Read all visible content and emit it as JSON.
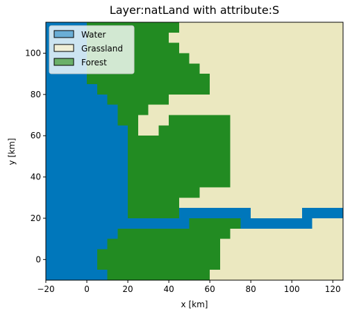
{
  "chart_data": {
    "type": "heatmap",
    "title": "Layer:natLand with attribute:S",
    "xlabel": "x [km]",
    "ylabel": "y [km]",
    "xlim": [
      -20,
      125
    ],
    "ylim": [
      -10,
      115
    ],
    "xticks": [
      -20,
      0,
      20,
      40,
      60,
      80,
      100,
      120
    ],
    "yticks": [
      0,
      20,
      40,
      60,
      80,
      100
    ],
    "grid": false,
    "legend_position": "top-left",
    "colors": {
      "water": "#0077bb",
      "grassland": "#ebe8c0",
      "forest": "#228b22"
    },
    "legend": [
      {
        "label": "Water",
        "swatch": "#6aaed6"
      },
      {
        "label": "Grassland",
        "swatch": "#f0efd7"
      },
      {
        "label": "Forest",
        "swatch": "#6ab06a"
      }
    ],
    "rows": [
      {
        "y": [
          110,
          115
        ],
        "segments": [
          [
            "water",
            -20,
            0
          ],
          [
            "forest",
            0,
            45
          ],
          [
            "grassland",
            45,
            125
          ]
        ]
      },
      {
        "y": [
          105,
          110
        ],
        "segments": [
          [
            "water",
            -20,
            0
          ],
          [
            "forest",
            0,
            40
          ],
          [
            "grassland",
            40,
            125
          ]
        ]
      },
      {
        "y": [
          100,
          105
        ],
        "segments": [
          [
            "water",
            -20,
            0
          ],
          [
            "forest",
            0,
            45
          ],
          [
            "grassland",
            45,
            125
          ]
        ]
      },
      {
        "y": [
          95,
          100
        ],
        "segments": [
          [
            "water",
            -20,
            0
          ],
          [
            "forest",
            0,
            50
          ],
          [
            "grassland",
            50,
            125
          ]
        ]
      },
      {
        "y": [
          90,
          95
        ],
        "segments": [
          [
            "water",
            -20,
            0
          ],
          [
            "forest",
            0,
            55
          ],
          [
            "grassland",
            55,
            125
          ]
        ]
      },
      {
        "y": [
          85,
          90
        ],
        "segments": [
          [
            "water",
            -20,
            0
          ],
          [
            "forest",
            0,
            60
          ],
          [
            "grassland",
            60,
            125
          ]
        ]
      },
      {
        "y": [
          80,
          85
        ],
        "segments": [
          [
            "water",
            -20,
            5
          ],
          [
            "forest",
            5,
            60
          ],
          [
            "grassland",
            60,
            125
          ]
        ]
      },
      {
        "y": [
          75,
          80
        ],
        "segments": [
          [
            "water",
            -20,
            10
          ],
          [
            "forest",
            10,
            40
          ],
          [
            "grassland",
            40,
            125
          ]
        ]
      },
      {
        "y": [
          70,
          75
        ],
        "segments": [
          [
            "water",
            -20,
            15
          ],
          [
            "forest",
            15,
            30
          ],
          [
            "grassland",
            30,
            125
          ]
        ]
      },
      {
        "y": [
          65,
          70
        ],
        "segments": [
          [
            "water",
            -20,
            15
          ],
          [
            "forest",
            15,
            25
          ],
          [
            "grassland",
            25,
            40
          ],
          [
            "forest",
            40,
            70
          ],
          [
            "grassland",
            70,
            125
          ]
        ]
      },
      {
        "y": [
          60,
          65
        ],
        "segments": [
          [
            "water",
            -20,
            20
          ],
          [
            "forest",
            20,
            25
          ],
          [
            "grassland",
            25,
            35
          ],
          [
            "forest",
            35,
            70
          ],
          [
            "grassland",
            70,
            125
          ]
        ]
      },
      {
        "y": [
          25,
          60
        ],
        "segments": [
          [
            "water",
            -20,
            20
          ],
          [
            "forest",
            20,
            70
          ],
          [
            "grassland",
            70,
            125
          ]
        ]
      },
      {
        "y": [
          30,
          35
        ],
        "segments": [
          [
            "water",
            -20,
            20
          ],
          [
            "forest",
            20,
            55
          ],
          [
            "grassland",
            55,
            125
          ]
        ]
      },
      {
        "y": [
          25,
          30
        ],
        "segments": [
          [
            "water",
            -20,
            20
          ],
          [
            "forest",
            20,
            45
          ],
          [
            "grassland",
            45,
            125
          ]
        ]
      },
      {
        "y": [
          20,
          25
        ],
        "segments": [
          [
            "water",
            -20,
            20
          ],
          [
            "forest",
            20,
            45
          ],
          [
            "water",
            45,
            80
          ],
          [
            "grassland",
            80,
            105
          ],
          [
            "water",
            105,
            125
          ]
        ]
      },
      {
        "y": [
          15,
          20
        ],
        "segments": [
          [
            "water",
            -20,
            50
          ],
          [
            "forest",
            50,
            75
          ],
          [
            "water",
            75,
            110
          ],
          [
            "grassland",
            110,
            125
          ]
        ]
      },
      {
        "y": [
          10,
          15
        ],
        "segments": [
          [
            "water",
            -20,
            15
          ],
          [
            "forest",
            15,
            70
          ],
          [
            "grassland",
            70,
            125
          ]
        ]
      },
      {
        "y": [
          5,
          10
        ],
        "segments": [
          [
            "water",
            -20,
            10
          ],
          [
            "forest",
            10,
            65
          ],
          [
            "grassland",
            65,
            125
          ]
        ]
      },
      {
        "y": [
          -5,
          5
        ],
        "segments": [
          [
            "water",
            -20,
            5
          ],
          [
            "forest",
            5,
            65
          ],
          [
            "grassland",
            65,
            125
          ]
        ]
      },
      {
        "y": [
          -10,
          -5
        ],
        "segments": [
          [
            "water",
            -20,
            10
          ],
          [
            "forest",
            10,
            60
          ],
          [
            "grassland",
            60,
            125
          ]
        ]
      }
    ]
  }
}
